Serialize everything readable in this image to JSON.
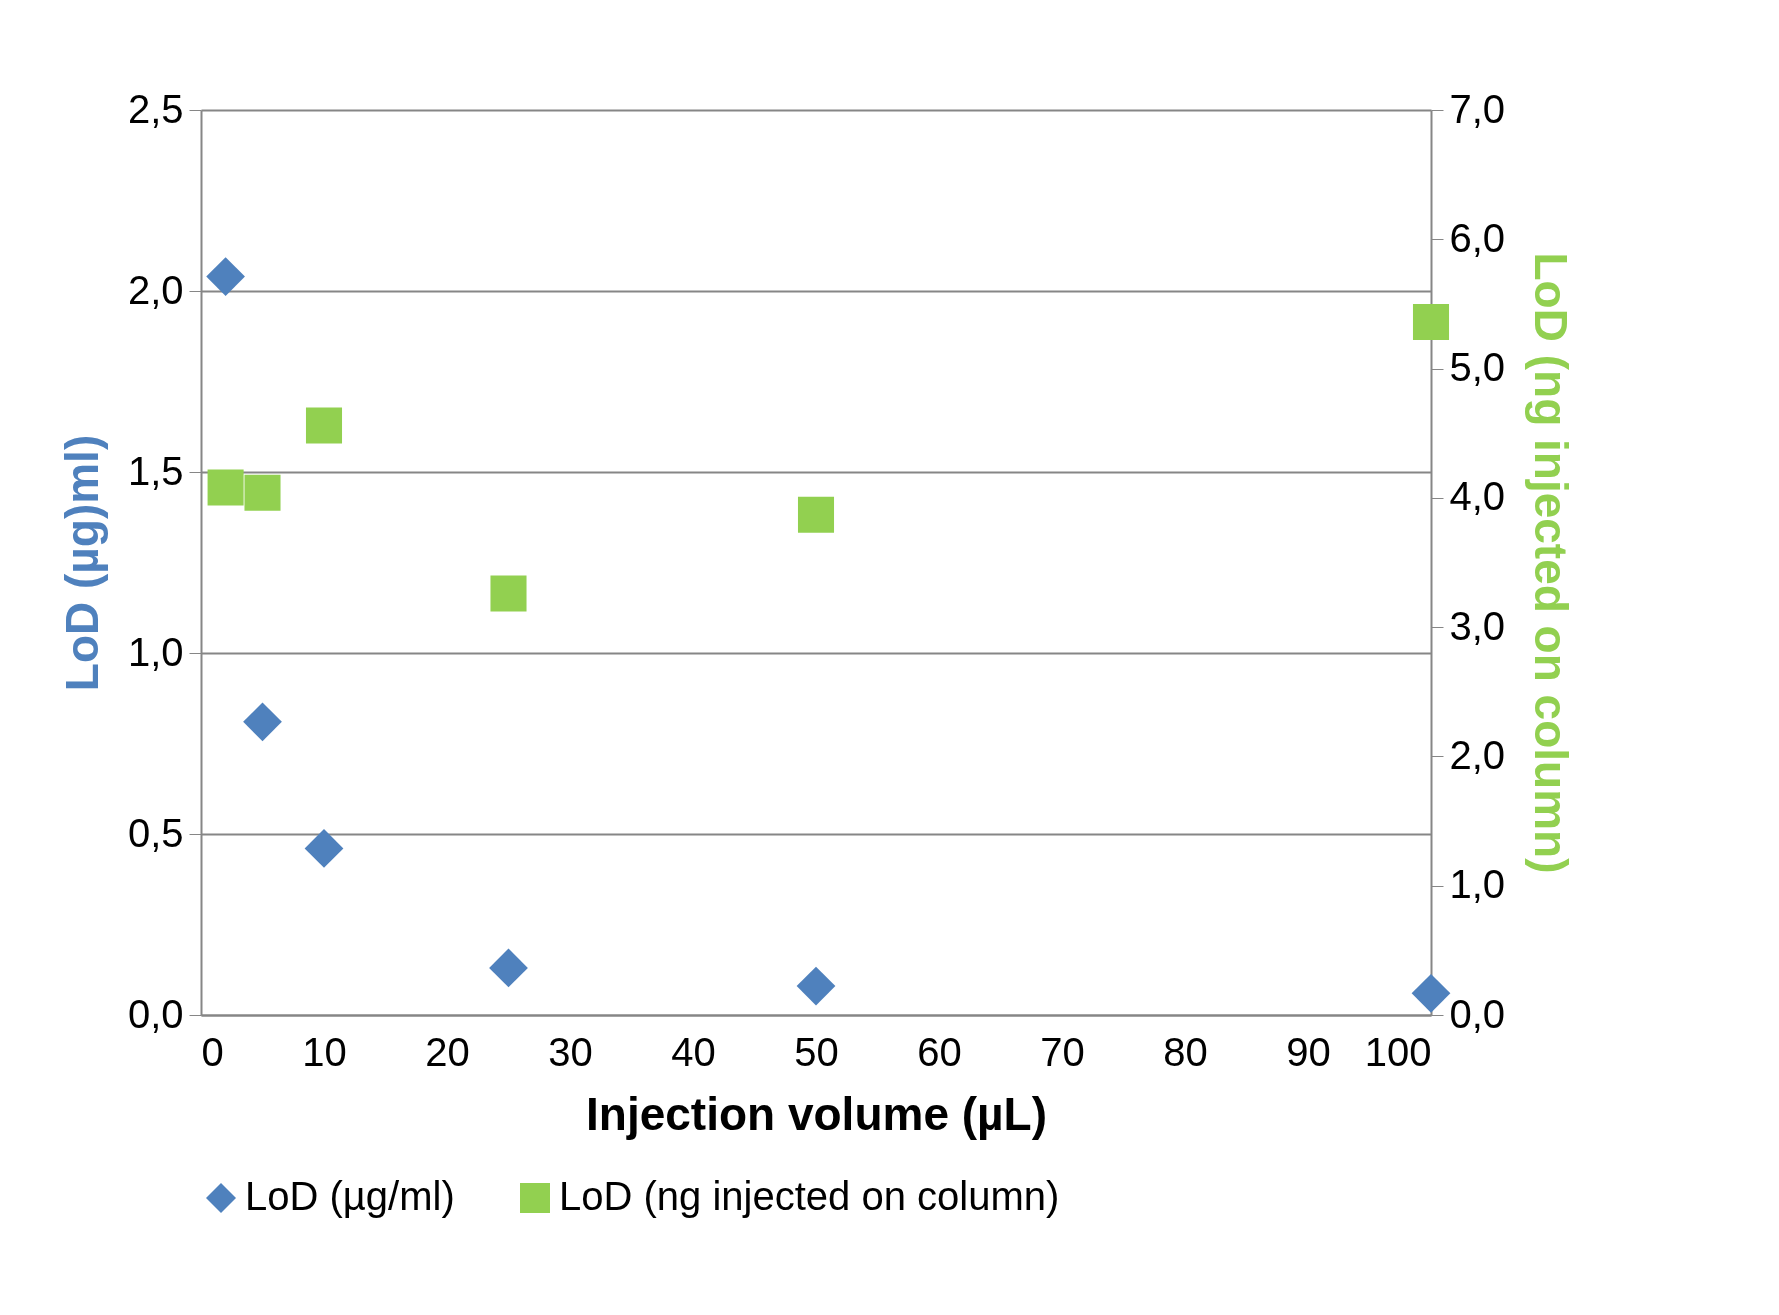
{
  "chart_data": {
    "type": "scatter",
    "xlabel": "Injection volume (µL)",
    "ylabel": "LoD (µg)ml)",
    "y2label": "LoD (ng injected on column)",
    "x": [
      2,
      5,
      10,
      25,
      50,
      100
    ],
    "series": [
      {
        "name": "LoD (µg/ml)",
        "color": "#4f81bd",
        "marker": "diamond",
        "values": [
          2.04,
          0.81,
          0.46,
          0.13,
          0.08,
          0.06
        ]
      },
      {
        "name": "LoD (ng injected on column)",
        "color": "#92d050",
        "marker": "square",
        "axis": "y2",
        "values": [
          4.08,
          4.04,
          4.56,
          3.26,
          3.87,
          5.36
        ]
      }
    ],
    "xlim": [
      0,
      100
    ],
    "xticks": [
      0,
      10,
      20,
      30,
      40,
      50,
      60,
      70,
      80,
      90,
      100
    ],
    "ylim": [
      0,
      2.5
    ],
    "yticks": [
      {
        "value": 0,
        "label": "0,0"
      },
      {
        "value": 0.5,
        "label": "0,5"
      },
      {
        "value": 1,
        "label": "1,0"
      },
      {
        "value": 1.5,
        "label": "1,5"
      },
      {
        "value": 2,
        "label": "2,0"
      },
      {
        "value": 2.5,
        "label": "2,5"
      }
    ],
    "y2lim": [
      0,
      7
    ],
    "y2ticks": [
      {
        "value": 0,
        "label": "0,0"
      },
      {
        "value": 1,
        "label": "1,0"
      },
      {
        "value": 2,
        "label": "2,0"
      },
      {
        "value": 3,
        "label": "3,0"
      },
      {
        "value": 4,
        "label": "4,0"
      },
      {
        "value": 5,
        "label": "5,0"
      },
      {
        "value": 6,
        "label": "6,0"
      },
      {
        "value": 7,
        "label": "7,0"
      }
    ],
    "grid": "y",
    "legend": "bottom"
  }
}
